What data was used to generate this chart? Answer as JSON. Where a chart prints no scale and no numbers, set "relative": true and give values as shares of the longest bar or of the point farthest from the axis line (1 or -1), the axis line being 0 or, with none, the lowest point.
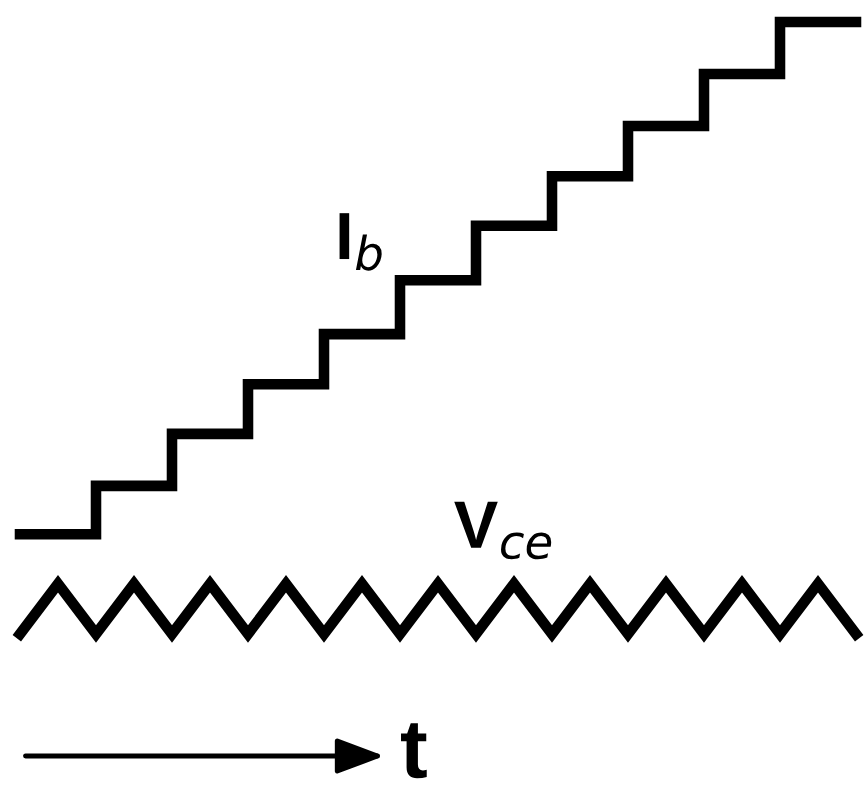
{
  "chart_data": {
    "type": "line",
    "relative": true,
    "xlabel": "t",
    "marker": "none",
    "line_style": "solid",
    "categories": [
      null,
      null,
      null,
      null,
      null,
      null,
      null,
      null,
      null,
      null,
      null,
      null,
      null,
      null,
      null,
      null,
      null,
      null,
      null,
      null,
      null,
      null,
      null
    ],
    "series": [
      {
        "name": "I$_{b}$",
        "type": "step",
        "color": "#000000",
        "values": [
          0.163,
          0.163,
          0.242,
          0.242,
          0.327,
          0.327,
          0.408,
          0.408,
          0.49,
          0.49,
          0.578,
          0.578,
          0.667,
          0.667,
          0.748,
          0.748,
          0.83,
          0.83,
          0.915,
          0.915,
          1.0,
          1.0,
          1.0
        ]
      },
      {
        "name": "V$_{ce}$",
        "color": "#000000",
        "values": [
          0,
          0.082,
          0,
          0.082,
          0,
          0.082,
          0,
          0.082,
          0,
          0.082,
          0,
          0.082,
          0,
          0.082,
          0,
          0.082,
          0,
          0.082,
          0,
          0.082,
          0,
          0.082,
          0
        ]
      }
    ]
  }
}
